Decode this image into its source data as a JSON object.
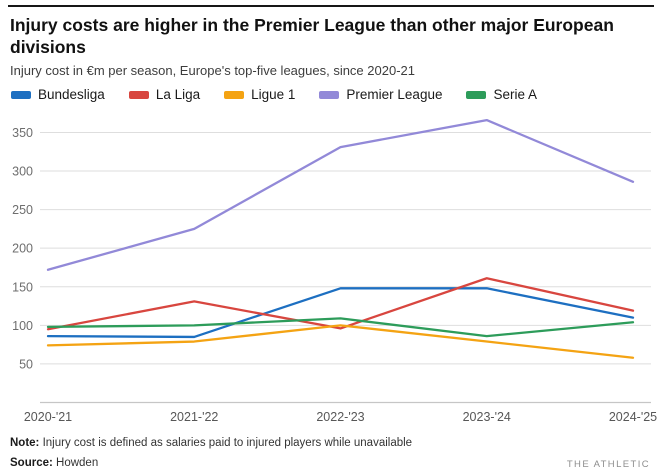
{
  "header": {
    "title_line1": "Injury costs are higher in the Premier League than other major European",
    "title_line2": "divisions",
    "subtitle": "Injury cost in €m per season, Europe's top-five leagues, since 2020-21"
  },
  "chart_data": {
    "type": "line",
    "x": [
      "2020-'21",
      "2021-'22",
      "2022-'23",
      "2023-'24",
      "2024-'25"
    ],
    "series": [
      {
        "name": "Bundesliga",
        "color": "#1d6fc1",
        "values": [
          86,
          85,
          148,
          148,
          110
        ]
      },
      {
        "name": "La Liga",
        "color": "#d8463f",
        "values": [
          95,
          131,
          96,
          161,
          119
        ]
      },
      {
        "name": "Ligue 1",
        "color": "#f4a313",
        "values": [
          74,
          79,
          100,
          79,
          58
        ]
      },
      {
        "name": "Premier League",
        "color": "#9289d8",
        "values": [
          172,
          225,
          331,
          366,
          286
        ]
      },
      {
        "name": "Serie A",
        "color": "#2d9c5a",
        "values": [
          98,
          100,
          109,
          86,
          104
        ]
      }
    ],
    "yticks": [
      50,
      100,
      150,
      200,
      250,
      300,
      350
    ],
    "ylim": [
      0,
      375
    ],
    "grid": true,
    "legend_position": "top",
    "title": "Injury costs are higher in the Premier League than other major European divisions",
    "xlabel": "",
    "ylabel": "Injury cost in €m per season"
  },
  "footer": {
    "note_label": "Note:",
    "note_text": " Injury cost is defined as salaries paid to injured players while unavailable",
    "source_label": "Source:",
    "source_text": " Howden",
    "brand": "THE ATHLETIC"
  },
  "colors": {
    "top_rule": "#161616",
    "grid": "#dedede",
    "axis": "#c6c6c6",
    "tick_label": "#6e6e6e",
    "x_label": "#575757"
  }
}
